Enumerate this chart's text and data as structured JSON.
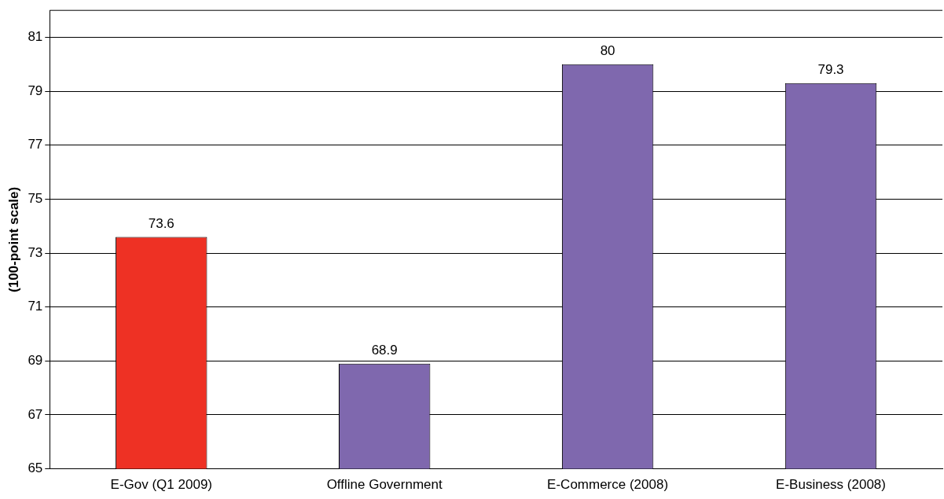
{
  "chart_data": {
    "type": "bar",
    "ylabel": "(100-point scale)",
    "categories": [
      "E-Gov (Q1 2009)",
      "Offline Government",
      "E-Commerce (2008)",
      "E-Business (2008)"
    ],
    "values": [
      73.6,
      68.9,
      80,
      79.3
    ],
    "colors": [
      "#ee3124",
      "#7f68ae",
      "#7f68ae",
      "#7f68ae"
    ],
    "ylim": [
      65,
      82
    ],
    "yticks": [
      65,
      67,
      69,
      71,
      73,
      75,
      77,
      79,
      81
    ],
    "grid": "y",
    "data_labels": true
  }
}
